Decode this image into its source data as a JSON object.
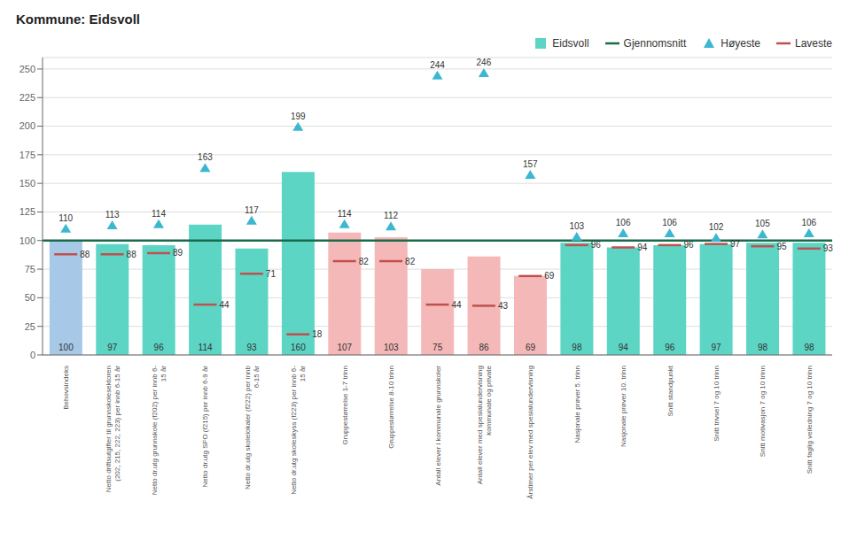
{
  "chart_data": {
    "type": "bar",
    "title": "Kommune: Eidsvoll",
    "categories": [
      "Behovsindeks",
      "Netto driftsutgifter til grunnskolesektoren\n(202, 215, 222, 223) per innb 6-15 år",
      "Netto dr.utg grunnskole (f202) per innb 6-\n15 år",
      "Netto dr.utg SFO (f215) per innb 6-9 år",
      "Netto dr.utg skolelokaler (f222) per innb\n6-15 år",
      "Netto dr.utg skoleskyss (f223) per innb 6-\n15 år",
      "Gruppestørrelse 1-7 trinn",
      "Gruppestørrelse 8-10 trinn",
      "Antall elever i kommunale grunnskoler",
      "Antall elever med spesialundervisning\nkommunale og private",
      "Årstimer per elev med spesialundervisning",
      "Nasjonale prøver 5. trinn",
      "Nasjonale prøver 10. trinn",
      "Snitt standpunkt",
      "Snitt trivsel 7 og 10 trinn",
      "Snitt motivasjon 7 og 10 trinn",
      "Snitt faglig veiledning 7 og 10 trinn"
    ],
    "series": [
      {
        "name": "Eidsvoll",
        "type": "bar",
        "color": "#5DD5C5",
        "colors": [
          "#A8C8E8",
          "#5DD5C5",
          "#5DD5C5",
          "#5DD5C5",
          "#5DD5C5",
          "#5DD5C5",
          "#F4B8B8",
          "#F4B8B8",
          "#F4B8B8",
          "#F4B8B8",
          "#F4B8B8",
          "#5DD5C5",
          "#5DD5C5",
          "#5DD5C5",
          "#5DD5C5",
          "#5DD5C5",
          "#5DD5C5"
        ],
        "values": [
          100,
          97,
          96,
          114,
          93,
          160,
          107,
          103,
          75,
          86,
          69,
          98,
          94,
          96,
          97,
          98,
          98
        ],
        "data_labels": true
      },
      {
        "name": "Gjennomsnitt",
        "type": "line",
        "color": "#1A6B4A",
        "value": 100
      },
      {
        "name": "Høyeste",
        "type": "scatter",
        "marker": "triangle",
        "color": "#3BB8D0",
        "values": [
          110,
          113,
          114,
          163,
          117,
          199,
          114,
          112,
          244,
          246,
          157,
          103,
          106,
          106,
          102,
          105,
          106
        ],
        "data_labels": true
      },
      {
        "name": "Laveste",
        "type": "scatter",
        "marker": "dash",
        "color": "#C0504D",
        "values": [
          88,
          88,
          89,
          44,
          71,
          18,
          82,
          82,
          44,
          43,
          69,
          96,
          94,
          96,
          97,
          95,
          93
        ],
        "data_labels": true
      }
    ],
    "ylim": [
      0,
      260
    ],
    "yticks": [
      0,
      25,
      50,
      75,
      100,
      125,
      150,
      175,
      200,
      225,
      250
    ],
    "grid": true,
    "legend": "upper right"
  }
}
